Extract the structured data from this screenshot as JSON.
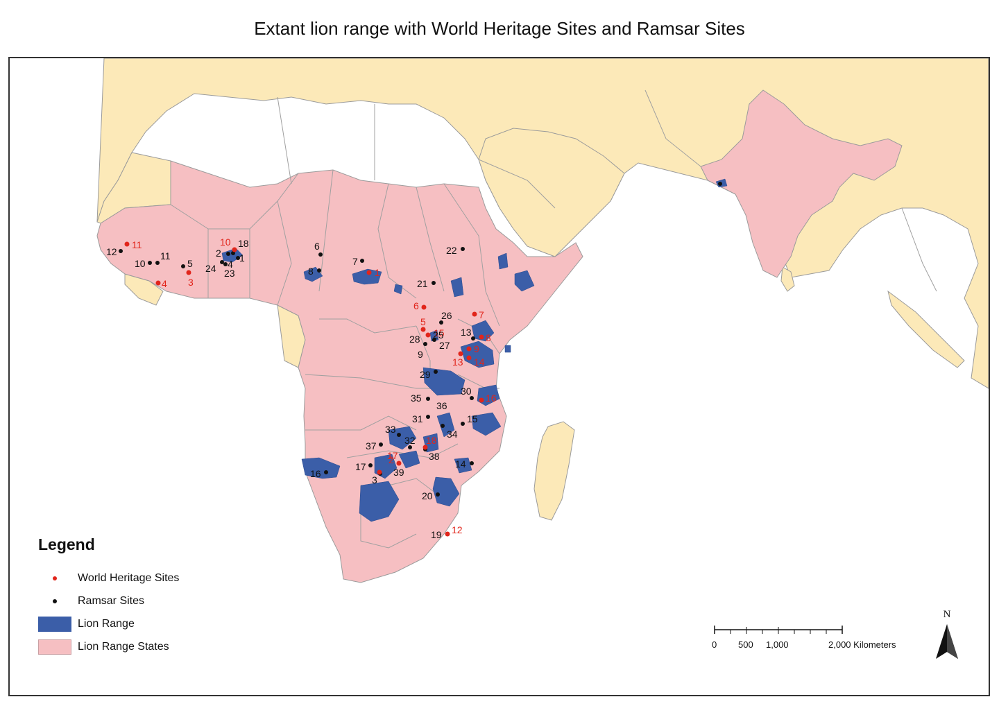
{
  "title": "Extant lion range with World Heritage Sites and Ramsar Sites",
  "colors": {
    "land_other": "#fce9b8",
    "lion_range_states": "#f6bfc2",
    "lion_range": "#3b5ea8",
    "world_heritage": "#e1251b",
    "ramsar": "#111111",
    "border": "#9b9b9b",
    "ocean": "#ffffff"
  },
  "legend": {
    "title": "Legend",
    "items": [
      {
        "label": "World Heritage Sites",
        "symbol": "red-dot"
      },
      {
        "label": "Ramsar Sites",
        "symbol": "black-dot"
      },
      {
        "label": "Lion Range",
        "symbol": "blue-fill"
      },
      {
        "label": "Lion Range States",
        "symbol": "pink-fill"
      }
    ]
  },
  "scale_bar": {
    "labels": [
      "0",
      "500",
      "1,000",
      "2,000 Kilometers"
    ]
  },
  "north_arrow": {
    "label": "N"
  },
  "world_heritage_site_labels": [
    "1",
    "2",
    "3",
    "4",
    "5",
    "6",
    "7",
    "8",
    "9",
    "10",
    "11",
    "12",
    "13",
    "14",
    "15",
    "16",
    "17",
    "18"
  ],
  "ramsar_site_labels": [
    "1",
    "2",
    "3",
    "4",
    "5",
    "6",
    "7",
    "8",
    "9",
    "10",
    "11",
    "12",
    "13",
    "14",
    "15",
    "16",
    "17",
    "18",
    "19",
    "20",
    "21",
    "22",
    "23",
    "24",
    "25",
    "26",
    "27",
    "28",
    "29",
    "30",
    "31",
    "32",
    "33",
    "34",
    "35",
    "36",
    "37",
    "38",
    "39"
  ]
}
